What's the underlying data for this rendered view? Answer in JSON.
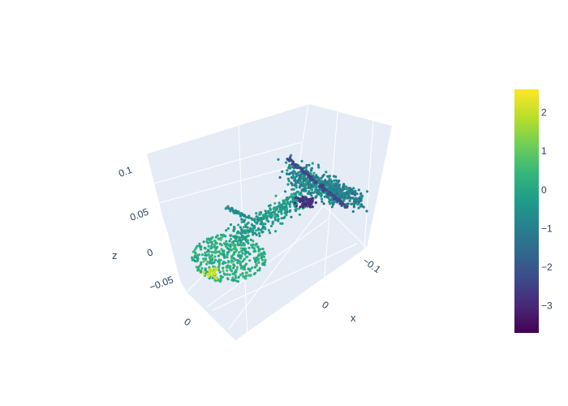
{
  "chart_data": {
    "type": "scatter",
    "dimensions": "3d",
    "title": "",
    "axes": {
      "x": {
        "label": "x",
        "ticks": [
          "−0.1",
          "0"
        ]
      },
      "y": {
        "label": "",
        "ticks": [
          "0"
        ]
      },
      "z": {
        "label": "z",
        "ticks": [
          "0.1",
          "0.05",
          "0",
          "−0.05"
        ]
      }
    },
    "colorbar": {
      "colorscale": "Viridis",
      "range": [
        -3.7,
        2.6
      ],
      "ticks": [
        "2",
        "1",
        "0",
        "−1",
        "−2",
        "−3"
      ],
      "tick_values": [
        2,
        1,
        0,
        -1,
        -2,
        -3
      ]
    },
    "grid": true,
    "scene_background": "#e5ecf6",
    "point_count_estimate": 1500,
    "shape": "boot-like point cloud (foot/shoe shape)"
  }
}
